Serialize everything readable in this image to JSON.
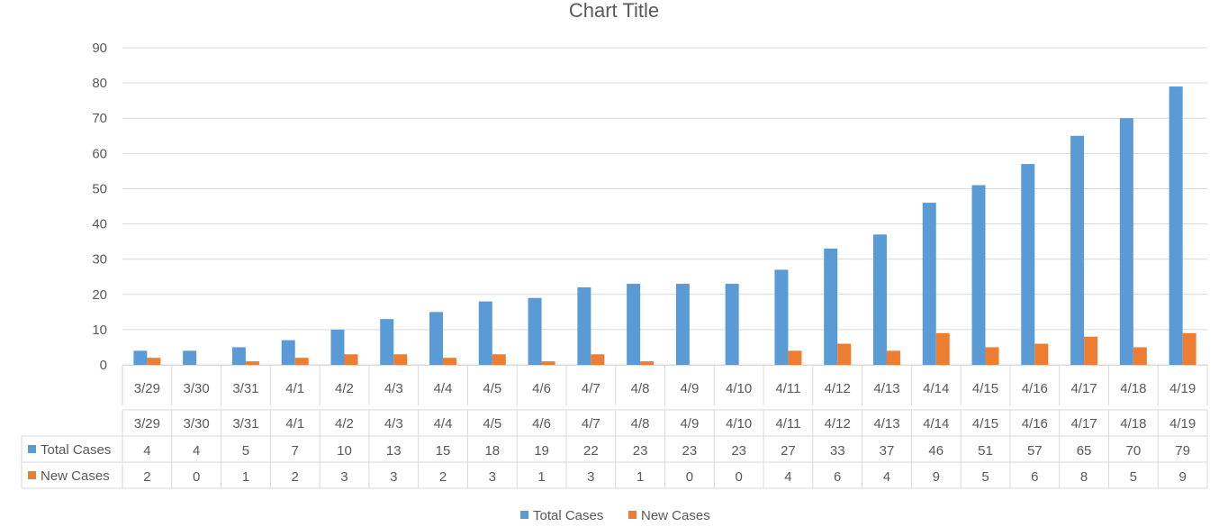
{
  "chart_data": {
    "type": "bar",
    "title": "Chart Title",
    "categories": [
      "3/29",
      "3/30",
      "3/31",
      "4/1",
      "4/2",
      "4/3",
      "4/4",
      "4/5",
      "4/6",
      "4/7",
      "4/8",
      "4/9",
      "4/10",
      "4/11",
      "4/12",
      "4/13",
      "4/14",
      "4/15",
      "4/16",
      "4/17",
      "4/18",
      "4/19"
    ],
    "series": [
      {
        "name": "Total Cases",
        "color": "#5B9BD5",
        "values": [
          4,
          4,
          5,
          7,
          10,
          13,
          15,
          18,
          19,
          22,
          23,
          23,
          23,
          27,
          33,
          37,
          46,
          51,
          57,
          65,
          70,
          79
        ]
      },
      {
        "name": "New Cases",
        "color": "#ED7D31",
        "values": [
          2,
          0,
          1,
          2,
          3,
          3,
          2,
          3,
          1,
          3,
          1,
          0,
          0,
          4,
          6,
          4,
          9,
          5,
          6,
          8,
          5,
          9
        ]
      }
    ],
    "yticks": [
      0,
      10,
      20,
      30,
      40,
      50,
      60,
      70,
      80,
      90
    ],
    "ylim": [
      0,
      90
    ],
    "grid": true,
    "data_table": true,
    "legend": "bottom"
  }
}
